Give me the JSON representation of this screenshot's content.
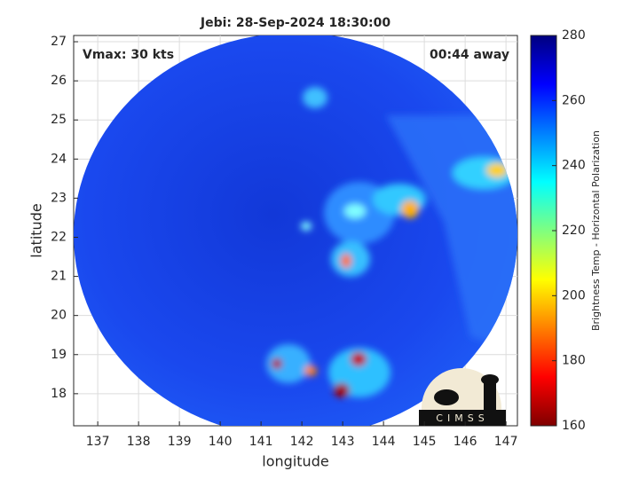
{
  "chart_data": {
    "type": "image",
    "title": "Jebi: 28-Sep-2024 18:30:00",
    "annotations": [
      "Vmax: 30 kts",
      "00:44 away"
    ],
    "xlabel": "longitude",
    "ylabel": "latitude",
    "xlim": [
      136.41,
      147.28
    ],
    "xticks": [
      137,
      138,
      139,
      140,
      141,
      142,
      143,
      144,
      145,
      146,
      147
    ],
    "ylim": [
      17.18,
      27.16
    ],
    "yticks": [
      18,
      19,
      20,
      21,
      22,
      23,
      24,
      25,
      26,
      27
    ],
    "grid": true,
    "colorbar": {
      "label": "Brightness Temp - Horizontal Polarization",
      "lim": [
        160,
        280
      ],
      "ticks": [
        160,
        180,
        200,
        220,
        240,
        260,
        280
      ],
      "colormap": "jet"
    },
    "logo": "CIMSS"
  }
}
